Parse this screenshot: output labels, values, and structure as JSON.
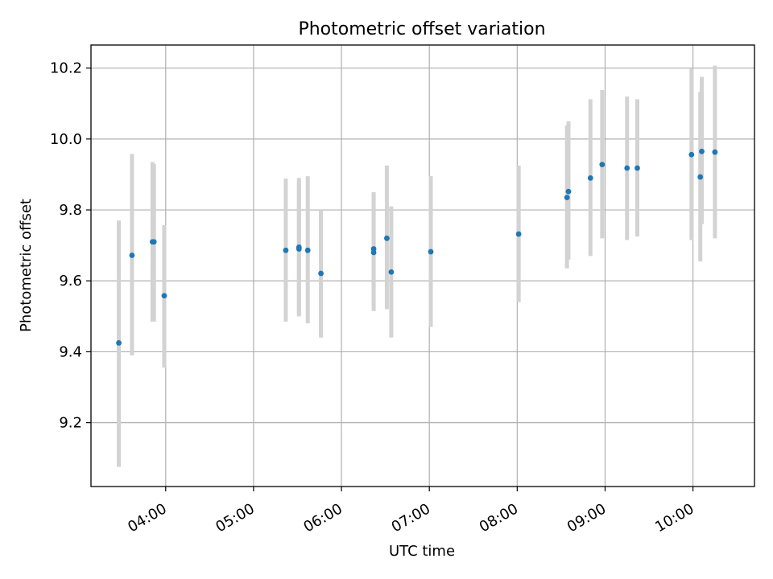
{
  "chart_data": {
    "type": "scatter",
    "title": "Photometric offset variation",
    "xlabel": "UTC time",
    "ylabel": "Photometric offset",
    "grid": true,
    "legend": "none",
    "x_axis": {
      "kind": "time",
      "range": [
        "03:09",
        "10:42"
      ],
      "ticks": [
        "04:00",
        "05:00",
        "06:00",
        "07:00",
        "08:00",
        "09:00",
        "10:00"
      ]
    },
    "y_axis": {
      "range": [
        9.02,
        10.265
      ],
      "ticks": [
        9.2,
        9.4,
        9.6,
        9.8,
        10.0,
        10.2
      ],
      "tick_labels": [
        "9.2",
        "9.4",
        "9.6",
        "9.8",
        "10.0",
        "10.2"
      ]
    },
    "colors": {
      "point": "#1f77b4",
      "errorbar": "#d3d3d3",
      "grid": "#b0b0b0"
    },
    "points": [
      {
        "x": "03:28",
        "y": 9.425,
        "ylow": 9.075,
        "yhigh": 9.77
      },
      {
        "x": "03:37",
        "y": 9.672,
        "ylow": 9.39,
        "yhigh": 9.958
      },
      {
        "x": "03:51",
        "y": 9.71,
        "ylow": 9.485,
        "yhigh": 9.935
      },
      {
        "x": "03:52",
        "y": 9.71,
        "ylow": 9.485,
        "yhigh": 9.93
      },
      {
        "x": "03:59",
        "y": 9.558,
        "ylow": 9.355,
        "yhigh": 9.757
      },
      {
        "x": "05:22",
        "y": 9.686,
        "ylow": 9.485,
        "yhigh": 9.888
      },
      {
        "x": "05:31",
        "y": 9.695,
        "ylow": 9.505,
        "yhigh": 9.89
      },
      {
        "x": "05:31",
        "y": 9.69,
        "ylow": 9.5,
        "yhigh": 9.88
      },
      {
        "x": "05:37",
        "y": 9.686,
        "ylow": 9.48,
        "yhigh": 9.895
      },
      {
        "x": "05:46",
        "y": 9.621,
        "ylow": 9.44,
        "yhigh": 9.8
      },
      {
        "x": "06:22",
        "y": 9.69,
        "ylow": 9.525,
        "yhigh": 9.85
      },
      {
        "x": "06:22",
        "y": 9.68,
        "ylow": 9.515,
        "yhigh": 9.85
      },
      {
        "x": "06:31",
        "y": 9.72,
        "ylow": 9.52,
        "yhigh": 9.925
      },
      {
        "x": "06:34",
        "y": 9.625,
        "ylow": 9.44,
        "yhigh": 9.81
      },
      {
        "x": "07:01",
        "y": 9.682,
        "ylow": 9.47,
        "yhigh": 9.895
      },
      {
        "x": "08:01",
        "y": 9.732,
        "ylow": 9.54,
        "yhigh": 9.925
      },
      {
        "x": "08:34",
        "y": 9.835,
        "ylow": 9.635,
        "yhigh": 10.038
      },
      {
        "x": "08:35",
        "y": 9.852,
        "ylow": 9.66,
        "yhigh": 10.05
      },
      {
        "x": "08:50",
        "y": 9.89,
        "ylow": 9.67,
        "yhigh": 10.112
      },
      {
        "x": "08:58",
        "y": 9.928,
        "ylow": 9.72,
        "yhigh": 10.138
      },
      {
        "x": "09:15",
        "y": 9.918,
        "ylow": 9.715,
        "yhigh": 10.12
      },
      {
        "x": "09:22",
        "y": 9.918,
        "ylow": 9.725,
        "yhigh": 10.112
      },
      {
        "x": "09:59",
        "y": 9.956,
        "ylow": 9.715,
        "yhigh": 10.198
      },
      {
        "x": "10:05",
        "y": 9.893,
        "ylow": 9.655,
        "yhigh": 10.133
      },
      {
        "x": "10:06",
        "y": 9.965,
        "ylow": 9.76,
        "yhigh": 10.175
      },
      {
        "x": "10:15",
        "y": 9.963,
        "ylow": 9.72,
        "yhigh": 10.207
      }
    ]
  }
}
